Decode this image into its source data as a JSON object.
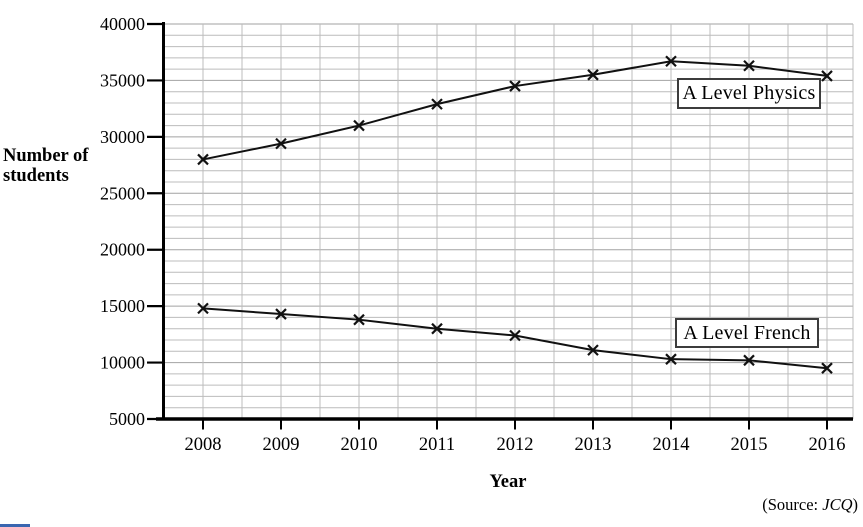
{
  "figure": {
    "y_axis_title_line1": "Number of",
    "y_axis_title_line2": "students",
    "x_axis_title": "Year",
    "source_prefix": "(Source: ",
    "source_name": "JCQ",
    "source_suffix": ")"
  },
  "chart_data": {
    "type": "line",
    "title": "",
    "xlabel": "Year",
    "ylabel": "Number of students",
    "x": [
      2008,
      2009,
      2010,
      2011,
      2012,
      2013,
      2014,
      2015,
      2016
    ],
    "x_tick_labels": [
      "2008",
      "2009",
      "2010",
      "2011",
      "2012",
      "2013",
      "2014",
      "2015",
      "2016"
    ],
    "ylim": [
      5000,
      40000
    ],
    "y_major_step": 5000,
    "y_minor_step": 1000,
    "y_ticks": [
      {
        "value": 40000,
        "label": "40 000"
      },
      {
        "value": 35000,
        "label": "35 000"
      },
      {
        "value": 30000,
        "label": "30 000"
      },
      {
        "value": 25000,
        "label": "25 000"
      },
      {
        "value": 20000,
        "label": "20 000"
      },
      {
        "value": 15000,
        "label": "15 000"
      },
      {
        "value": 10000,
        "label": "10 000"
      },
      {
        "value": 5000,
        "label": "5000"
      }
    ],
    "grid": true,
    "legend_position": "boxed labels inside plot, near each line",
    "marker": "x",
    "series": [
      {
        "name": "A Level Physics",
        "values": [
          28000,
          29400,
          31000,
          32900,
          34500,
          35500,
          36700,
          36300,
          35400
        ]
      },
      {
        "name": "A Level French",
        "values": [
          14800,
          14300,
          13800,
          13000,
          12400,
          11100,
          10300,
          10200,
          9500
        ]
      }
    ],
    "source_note": "(Source: JCQ)"
  },
  "colors": {
    "line": "#111111",
    "axis": "#000000",
    "grid_minor": "#bcbcbc",
    "grid_major": "#a2a2a2",
    "legend_border": "#3c3c3c",
    "background": "#ffffff"
  }
}
